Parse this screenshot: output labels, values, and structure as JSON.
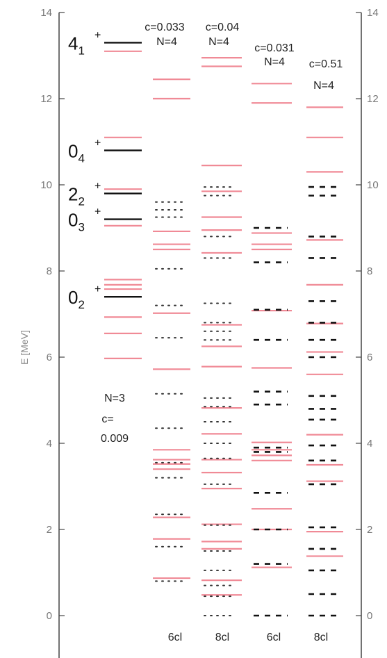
{
  "chart_data": {
    "type": "level-scheme",
    "ylabel": "E [MeV]",
    "ylim": [
      0,
      14
    ],
    "yticks": [
      "0",
      "2",
      "4",
      "6",
      "8",
      "10",
      "12",
      "14"
    ],
    "grid": false,
    "colors": {
      "pink": "#f08a96",
      "black": "#111111",
      "dotted": "#333333",
      "frame": "#444444"
    },
    "columns": [
      {
        "id": "exp",
        "annotations": [
          "N=3",
          "c=",
          "0.009"
        ],
        "footer": "",
        "pink_levels": [
          5.97,
          6.55,
          6.93,
          7.58,
          7.68,
          7.8,
          9.05,
          9.9,
          11.1,
          13.1
        ],
        "black_levels": [
          {
            "e": 7.4,
            "label": "0",
            "sub": "2",
            "sup": "+"
          },
          {
            "e": 9.2,
            "label": "0",
            "sub": "3",
            "sup": "+"
          },
          {
            "e": 9.8,
            "label": "2",
            "sub": "2",
            "sup": "+"
          },
          {
            "e": 10.8,
            "label": "0",
            "sub": "4",
            "sup": "+"
          },
          {
            "e": 13.3,
            "label": "4",
            "sub": "1",
            "sup": "+"
          }
        ],
        "dotted_levels": [],
        "dashed_levels": []
      },
      {
        "id": "6cl-a",
        "annotations": [
          "c=0.033",
          "N=4"
        ],
        "footer": "6cl",
        "pink_levels": [
          0.87,
          1.78,
          2.28,
          3.4,
          3.52,
          3.62,
          3.85,
          5.72,
          7.02,
          8.5,
          8.62,
          8.92,
          12.0,
          12.45
        ],
        "black_levels": [],
        "dotted_levels": [
          0.8,
          1.6,
          2.35,
          3.2,
          3.55,
          4.35,
          5.15,
          6.45,
          7.2,
          8.05,
          9.25,
          9.42,
          9.6
        ],
        "dashed_levels": []
      },
      {
        "id": "8cl-a",
        "annotations": [
          "c=0.04",
          "N=4"
        ],
        "footer": "8cl",
        "pink_levels": [
          0.48,
          0.82,
          1.55,
          1.72,
          2.12,
          2.95,
          3.32,
          3.62,
          4.22,
          4.82,
          5.78,
          6.25,
          6.75,
          8.42,
          8.95,
          9.25,
          9.85,
          10.45,
          12.75,
          12.95
        ],
        "black_levels": [],
        "dotted_levels": [
          0,
          0.45,
          0.7,
          1.05,
          1.5,
          2.1,
          3.05,
          3.65,
          4.0,
          4.5,
          4.85,
          5.05,
          6.4,
          6.6,
          6.8,
          7.25,
          8.3,
          8.8,
          9.75,
          9.95
        ],
        "dashed_levels": []
      },
      {
        "id": "6cl-b",
        "annotations": [
          "c=0.031",
          "N=4"
        ],
        "footer": "6cl",
        "pink_levels": [
          1.12,
          2.0,
          2.48,
          3.6,
          3.72,
          3.85,
          4.02,
          5.75,
          7.08,
          8.5,
          8.62,
          8.88,
          11.9,
          12.35
        ],
        "black_levels": [],
        "dotted_levels": [],
        "dashed_levels": [
          0,
          1.2,
          2.0,
          2.85,
          3.8,
          3.9,
          4.9,
          5.2,
          6.4,
          7.1,
          8.2,
          9.0
        ]
      },
      {
        "id": "8cl-b",
        "annotations": [
          "c=0.51",
          "N=4"
        ],
        "footer": "8cl",
        "pink_levels": [
          1.38,
          1.95,
          3.12,
          3.5,
          4.2,
          5.6,
          6.12,
          6.78,
          7.68,
          8.72,
          10.3,
          11.1,
          11.8
        ],
        "black_levels": [],
        "dotted_levels": [],
        "dashed_levels": [
          0,
          0.5,
          1.05,
          1.55,
          2.05,
          3.05,
          3.6,
          3.95,
          4.55,
          4.8,
          5.1,
          6.0,
          6.4,
          6.8,
          7.3,
          8.3,
          8.8,
          9.75,
          9.95
        ]
      }
    ]
  }
}
